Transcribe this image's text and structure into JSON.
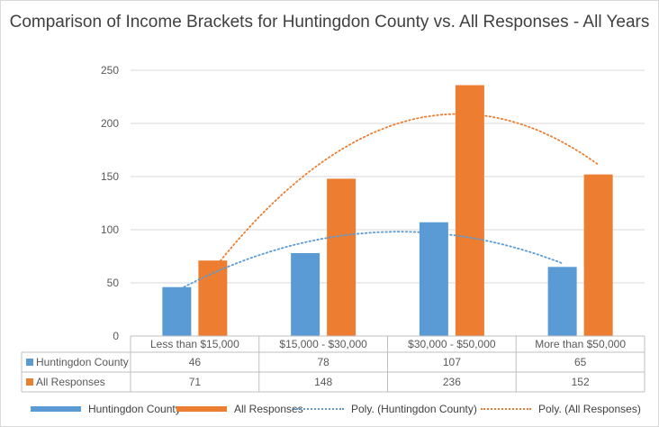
{
  "chart_data": {
    "type": "bar",
    "title": "Comparison of Income Brackets for Huntingdon County vs. All Responses - All Years",
    "categories": [
      "Less than $15,000",
      "$15,000 - $30,000",
      "$30,000 - $50,000",
      "More than $50,000"
    ],
    "series": [
      {
        "name": "Huntingdon County",
        "values": [
          46,
          78,
          107,
          65
        ],
        "color": "#5b9bd5"
      },
      {
        "name": "All Responses",
        "values": [
          71,
          148,
          236,
          152
        ],
        "color": "#ed7d31"
      }
    ],
    "trendlines": [
      {
        "name": "Poly. (Huntingdon County)",
        "series": "Huntingdon County",
        "order": 2,
        "color": "#5b9bd5"
      },
      {
        "name": "Poly. (All Responses)",
        "series": "All Responses",
        "order": 2,
        "color": "#ed7d31"
      }
    ],
    "ylim": [
      0,
      250
    ],
    "yticks": [
      0,
      50,
      100,
      150,
      200,
      250
    ],
    "ytick_labels": [
      "0",
      "50",
      "100",
      "150",
      "200",
      "250"
    ],
    "grid": true,
    "data_table": true,
    "legend": "bottom"
  }
}
